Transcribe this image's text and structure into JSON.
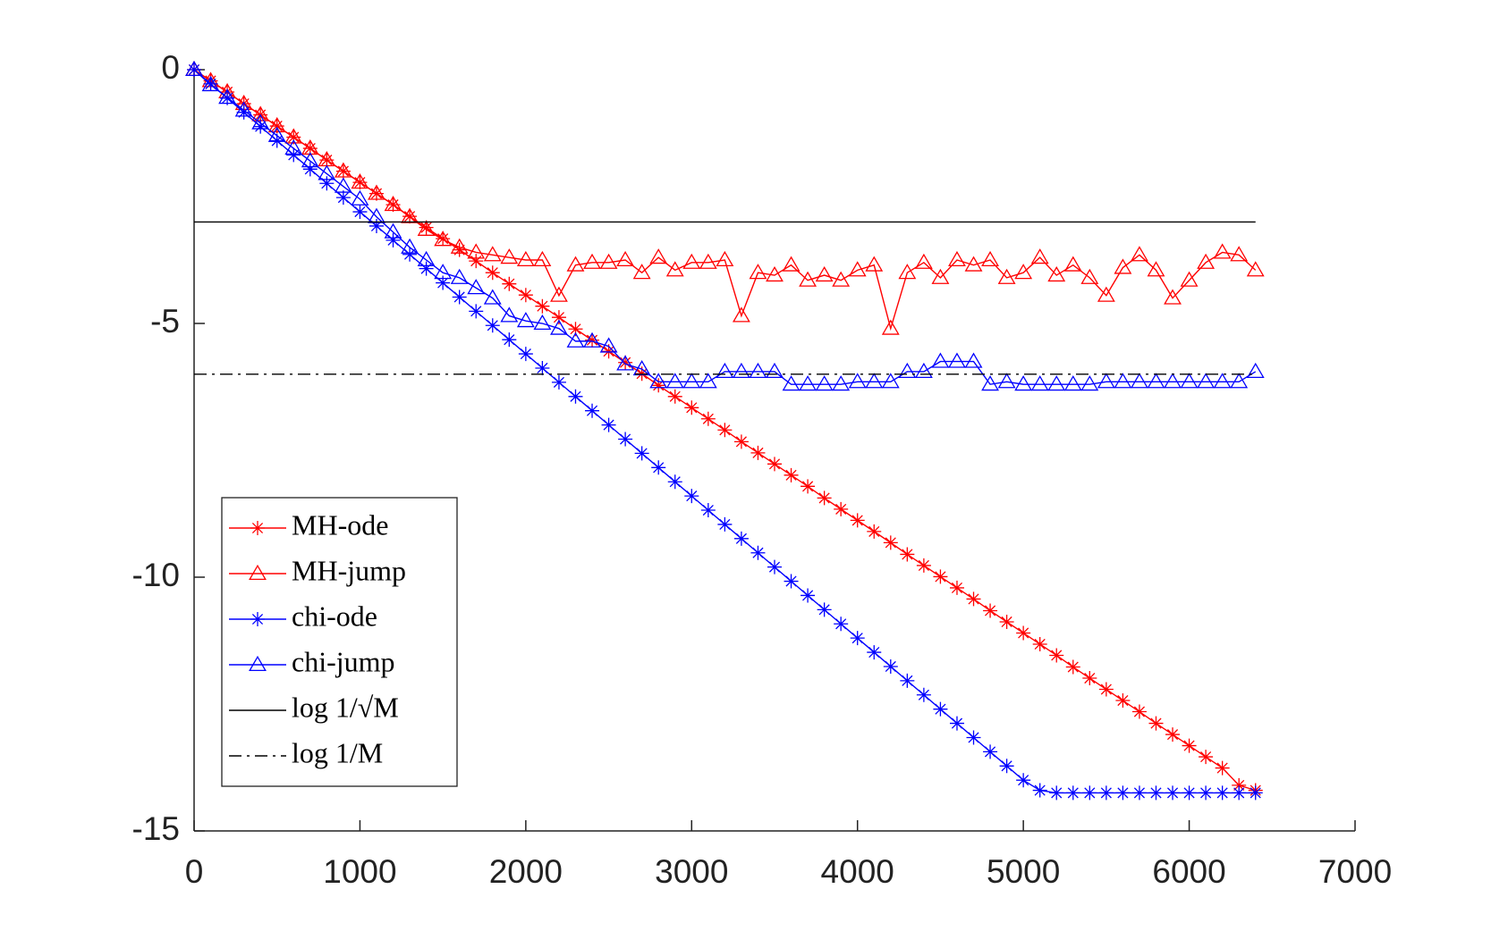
{
  "chart_data": {
    "type": "line",
    "x": [
      0,
      100,
      200,
      300,
      400,
      500,
      600,
      700,
      800,
      900,
      1000,
      1100,
      1200,
      1300,
      1400,
      1500,
      1600,
      1700,
      1800,
      1900,
      2000,
      2100,
      2200,
      2300,
      2400,
      2500,
      2600,
      2700,
      2800,
      2900,
      3000,
      3100,
      3200,
      3300,
      3400,
      3500,
      3600,
      3700,
      3800,
      3900,
      4000,
      4100,
      4200,
      4300,
      4400,
      4500,
      4600,
      4700,
      4800,
      4900,
      5000,
      5100,
      5200,
      5300,
      5400,
      5500,
      5600,
      5700,
      5800,
      5900,
      6000,
      6100,
      6200,
      6300,
      6400
    ],
    "series": [
      {
        "name": "MH-ode",
        "color": "#ff0000",
        "marker": "star",
        "linestyle": "solid",
        "values": [
          0,
          -0.22,
          -0.44,
          -0.67,
          -0.89,
          -1.11,
          -1.33,
          -1.55,
          -1.78,
          -2.0,
          -2.22,
          -2.44,
          -2.66,
          -2.89,
          -3.11,
          -3.33,
          -3.55,
          -3.77,
          -4.0,
          -4.22,
          -4.44,
          -4.66,
          -4.88,
          -5.11,
          -5.33,
          -5.55,
          -5.77,
          -5.99,
          -6.22,
          -6.44,
          -6.66,
          -6.88,
          -7.1,
          -7.33,
          -7.55,
          -7.77,
          -7.99,
          -8.21,
          -8.44,
          -8.66,
          -8.88,
          -9.1,
          -9.32,
          -9.55,
          -9.77,
          -9.99,
          -10.21,
          -10.43,
          -10.66,
          -10.88,
          -11.1,
          -11.32,
          -11.54,
          -11.77,
          -11.99,
          -12.21,
          -12.43,
          -12.65,
          -12.88,
          -13.1,
          -13.32,
          -13.54,
          -13.76,
          -14.1,
          -14.2
        ]
      },
      {
        "name": "MH-jump",
        "color": "#ff0000",
        "marker": "triangle",
        "linestyle": "solid",
        "values": [
          0,
          -0.22,
          -0.44,
          -0.67,
          -0.89,
          -1.11,
          -1.33,
          -1.55,
          -1.78,
          -2.0,
          -2.22,
          -2.44,
          -2.66,
          -2.9,
          -3.15,
          -3.35,
          -3.5,
          -3.6,
          -3.65,
          -3.7,
          -3.75,
          -3.75,
          -4.45,
          -3.85,
          -3.8,
          -3.8,
          -3.75,
          -4.0,
          -3.7,
          -3.95,
          -3.8,
          -3.8,
          -3.75,
          -4.85,
          -4.0,
          -4.05,
          -3.85,
          -4.15,
          -4.05,
          -4.15,
          -3.95,
          -3.85,
          -5.1,
          -4.0,
          -3.8,
          -4.1,
          -3.75,
          -3.85,
          -3.75,
          -4.1,
          -4.0,
          -3.7,
          -4.05,
          -3.85,
          -4.1,
          -4.45,
          -3.9,
          -3.65,
          -3.95,
          -4.5,
          -4.15,
          -3.8,
          -3.6,
          -3.65,
          -3.95
        ]
      },
      {
        "name": "chi-ode",
        "color": "#0000ff",
        "marker": "star",
        "linestyle": "solid",
        "values": [
          0,
          -0.28,
          -0.56,
          -0.84,
          -1.12,
          -1.4,
          -1.68,
          -1.96,
          -2.24,
          -2.52,
          -2.8,
          -3.08,
          -3.36,
          -3.64,
          -3.92,
          -4.2,
          -4.48,
          -4.76,
          -5.04,
          -5.32,
          -5.6,
          -5.88,
          -6.16,
          -6.44,
          -6.72,
          -7.0,
          -7.28,
          -7.56,
          -7.84,
          -8.12,
          -8.4,
          -8.68,
          -8.96,
          -9.24,
          -9.52,
          -9.8,
          -10.08,
          -10.36,
          -10.64,
          -10.92,
          -11.2,
          -11.48,
          -11.76,
          -12.04,
          -12.32,
          -12.6,
          -12.88,
          -13.16,
          -13.44,
          -13.72,
          -14.0,
          -14.2,
          -14.25,
          -14.25,
          -14.25,
          -14.25,
          -14.25,
          -14.25,
          -14.25,
          -14.25,
          -14.25,
          -14.25,
          -14.25,
          -14.25,
          -14.25
        ]
      },
      {
        "name": "chi-jump",
        "color": "#0000ff",
        "marker": "triangle",
        "linestyle": "solid",
        "values": [
          0,
          -0.3,
          -0.55,
          -0.8,
          -1.05,
          -1.3,
          -1.55,
          -1.8,
          -2.05,
          -2.3,
          -2.55,
          -2.9,
          -3.2,
          -3.5,
          -3.75,
          -4.0,
          -4.1,
          -4.3,
          -4.5,
          -4.85,
          -4.95,
          -5.0,
          -5.1,
          -5.35,
          -5.35,
          -5.45,
          -5.8,
          -5.9,
          -6.15,
          -6.15,
          -6.15,
          -6.15,
          -5.95,
          -5.95,
          -5.95,
          -5.95,
          -6.2,
          -6.2,
          -6.2,
          -6.2,
          -6.15,
          -6.15,
          -6.15,
          -5.95,
          -5.95,
          -5.75,
          -5.75,
          -5.75,
          -6.2,
          -6.15,
          -6.2,
          -6.2,
          -6.2,
          -6.2,
          -6.2,
          -6.15,
          -6.15,
          -6.15,
          -6.15,
          -6.15,
          -6.15,
          -6.15,
          -6.15,
          -6.15,
          -5.95
        ]
      },
      {
        "name": "log 1/√M",
        "color": "#000000",
        "marker": "none",
        "linestyle": "solid",
        "x": [
          0,
          6400
        ],
        "values": [
          -3,
          -3
        ]
      },
      {
        "name": "log 1/M",
        "color": "#000000",
        "marker": "none",
        "linestyle": "dashdot",
        "x": [
          0,
          6400
        ],
        "values": [
          -6,
          -6
        ]
      }
    ],
    "xlim": [
      0,
      7000
    ],
    "xticks": [
      0,
      1000,
      2000,
      3000,
      4000,
      5000,
      6000,
      7000
    ],
    "ylim": [
      -15,
      0
    ],
    "yticks": [
      -15,
      -10,
      -5,
      0
    ],
    "grid": false,
    "legend": "lower left"
  }
}
